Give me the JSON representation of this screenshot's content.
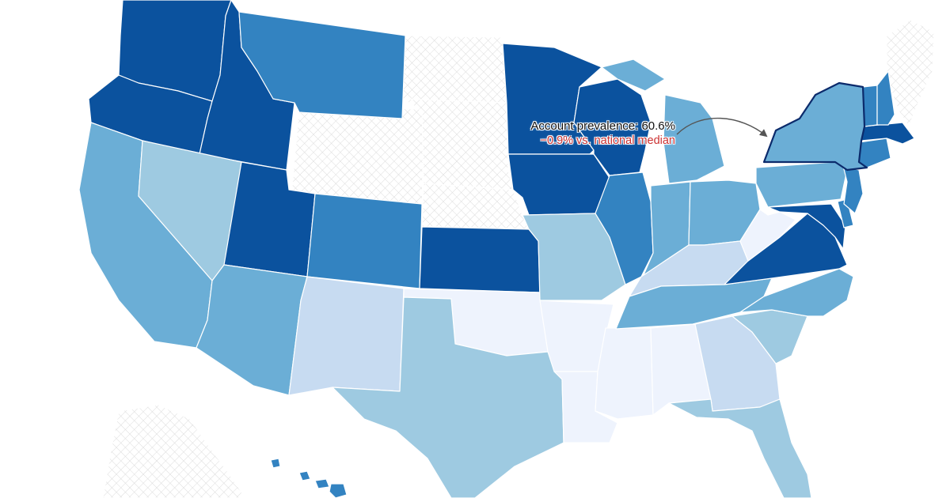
{
  "legend_scale": {
    "0": "#eef3fd",
    "1": "#c7dbf1",
    "2": "#9ecae1",
    "3": "#6baed6",
    "4": "#3383c1",
    "5": "#0b529e"
  },
  "colors": {
    "no_data_hatch": "#d9d9d9",
    "highlight_border": "#0b2a6b",
    "negative_delta": "#cc3333",
    "arrow": "#555555"
  },
  "states": {
    "WA": 5,
    "OR": 5,
    "ID": 5,
    "MT": 4,
    "CA": 3,
    "NV": 2,
    "UT": 5,
    "AZ": 3,
    "CO": 4,
    "NM": 1,
    "TX": 2,
    "OK": 0,
    "KS": 5,
    "MN": 5,
    "IA": 5,
    "MO": 2,
    "AR": 0,
    "LA": 0,
    "MS": 0,
    "AL": 0,
    "WI": 5,
    "IL": 4,
    "MI": 3,
    "IN": 3,
    "OH": 3,
    "KY": 1,
    "TN": 3,
    "GA": 1,
    "FL": 2,
    "SC": 2,
    "NC": 3,
    "VA": 5,
    "WV": 0,
    "MD": 5,
    "DE": 4,
    "PA": 3,
    "NJ": 4,
    "NY": 3,
    "CT": 4,
    "MA": 5,
    "VT": 4,
    "NH": 4,
    "HI": 4
  },
  "no_data_states": [
    "WY",
    "NE",
    "SD",
    "ND",
    "ME",
    "AK"
  ],
  "highlighted_state": "NY",
  "callout": {
    "metric_line": "Account prevalence: 60.6%",
    "delta_line": "−0.9% vs. national median"
  }
}
